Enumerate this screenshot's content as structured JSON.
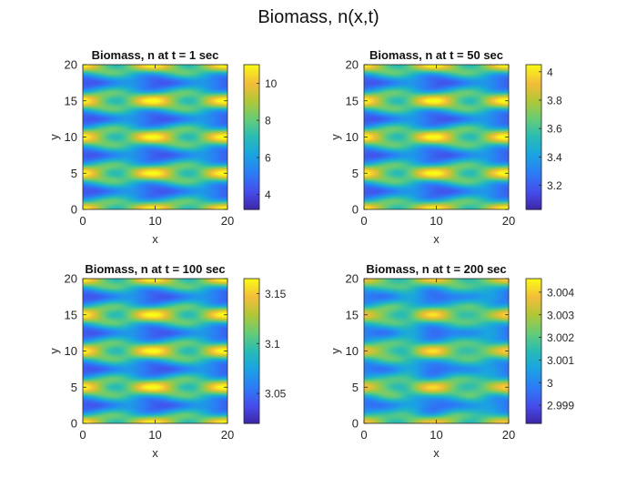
{
  "figure": {
    "suptitle": "Biomass, n(x,t)"
  },
  "chart_data": [
    {
      "type": "heatmap",
      "title": "Biomass, n at t = 1 sec",
      "xlabel": "x",
      "ylabel": "y",
      "xlim": [
        0,
        20
      ],
      "ylim": [
        0,
        20
      ],
      "xticks": [
        "0",
        "10",
        "20"
      ],
      "yticks": [
        "0",
        "5",
        "10",
        "15",
        "20"
      ],
      "colormap": "parula",
      "clim": [
        3.2,
        11
      ],
      "colorbar_ticks": [
        4,
        6,
        8,
        10
      ],
      "colorbar_tick_labels": [
        "4",
        "6",
        "8",
        "10"
      ],
      "field": {
        "period_x": 10,
        "period_y": 5,
        "amplitude": 1.0,
        "blur": 0.0
      }
    },
    {
      "type": "heatmap",
      "title": "Biomass, n at t = 50 sec",
      "xlabel": "x",
      "ylabel": "y",
      "xlim": [
        0,
        20
      ],
      "ylim": [
        0,
        20
      ],
      "xticks": [
        "0",
        "10",
        "20"
      ],
      "yticks": [
        "0",
        "5",
        "10",
        "15",
        "20"
      ],
      "colormap": "parula",
      "clim": [
        3.03,
        4.05
      ],
      "colorbar_ticks": [
        3.2,
        3.4,
        3.6,
        3.8,
        4
      ],
      "colorbar_tick_labels": [
        "3.2",
        "3.4",
        "3.6",
        "3.8",
        "4"
      ],
      "field": {
        "period_x": 10,
        "period_y": 5,
        "amplitude": 1.0,
        "blur": 0.0
      }
    },
    {
      "type": "heatmap",
      "title": "Biomass, n at t = 100 sec",
      "xlabel": "x",
      "ylabel": "y",
      "xlim": [
        0,
        20
      ],
      "ylim": [
        0,
        20
      ],
      "xticks": [
        "0",
        "10",
        "20"
      ],
      "yticks": [
        "0",
        "5",
        "10",
        "15",
        "20"
      ],
      "colormap": "parula",
      "clim": [
        3.02,
        3.165
      ],
      "colorbar_ticks": [
        3.05,
        3.1,
        3.15
      ],
      "colorbar_tick_labels": [
        "3.05",
        "3.1",
        "3.15"
      ],
      "field": {
        "period_x": 10,
        "period_y": 5,
        "amplitude": 1.0,
        "blur": 0.0
      }
    },
    {
      "type": "heatmap",
      "title": "Biomass, n at t = 200 sec",
      "xlabel": "x",
      "ylabel": "y",
      "xlim": [
        0,
        20
      ],
      "ylim": [
        0,
        20
      ],
      "xticks": [
        "0",
        "10",
        "20"
      ],
      "yticks": [
        "0",
        "5",
        "10",
        "15",
        "20"
      ],
      "colormap": "parula",
      "clim": [
        2.9982,
        3.0046
      ],
      "colorbar_ticks": [
        2.999,
        3,
        3.001,
        3.002,
        3.003,
        3.004
      ],
      "colorbar_tick_labels": [
        "2.999",
        "3",
        "3.001",
        "3.002",
        "3.003",
        "3.004"
      ],
      "field": {
        "period_x": 10,
        "period_y": 5,
        "amplitude": 0.8,
        "blur": 0.35
      }
    }
  ]
}
